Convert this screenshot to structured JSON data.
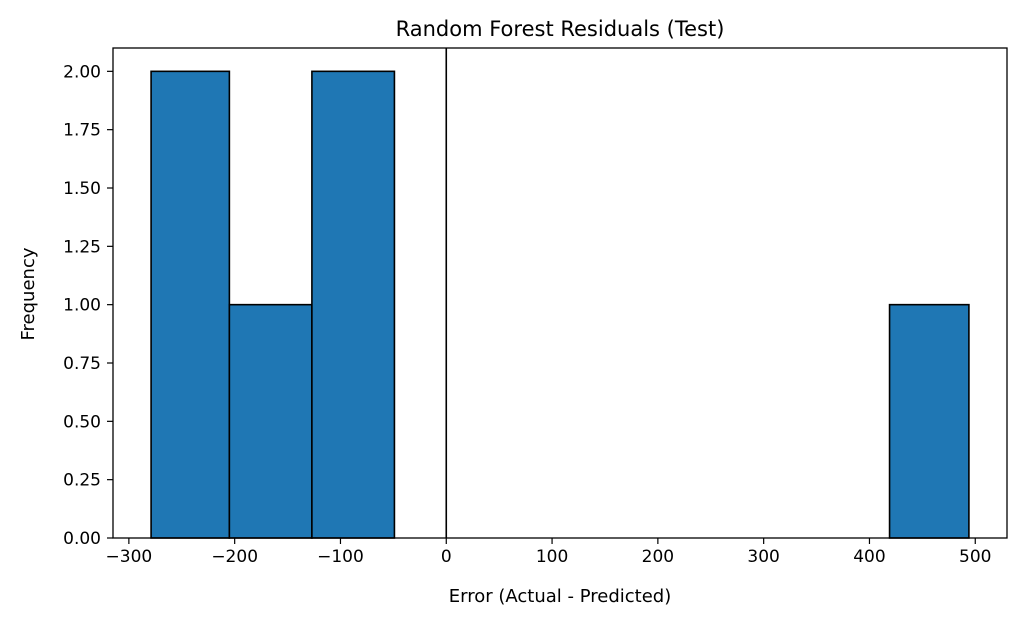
{
  "chart_data": {
    "type": "histogram",
    "title": "Random Forest Residuals (Test)",
    "xlabel": "Error (Actual - Predicted)",
    "ylabel": "Frequency",
    "xlim": [
      -315,
      530
    ],
    "ylim": [
      0,
      2.1
    ],
    "xticks": [
      -300,
      -200,
      -100,
      0,
      100,
      200,
      300,
      400,
      500
    ],
    "xtick_labels": [
      "−300",
      "−200",
      "−100",
      "0",
      "100",
      "200",
      "300",
      "400",
      "500"
    ],
    "yticks": [
      0,
      0.25,
      0.5,
      0.75,
      1.0,
      1.25,
      1.5,
      1.75,
      2.0
    ],
    "ytick_labels": [
      "0.00",
      "0.25",
      "0.50",
      "0.75",
      "1.00",
      "1.25",
      "1.50",
      "1.75",
      "2.00"
    ],
    "bins": [
      {
        "x0": -279.0,
        "x1": -205.0,
        "count": 2
      },
      {
        "x0": -205.0,
        "x1": -127.0,
        "count": 1
      },
      {
        "x0": -127.0,
        "x1": -49.0,
        "count": 2
      },
      {
        "x0": -49.0,
        "x1": 29.0,
        "count": 0
      },
      {
        "x0": 29.0,
        "x1": 107.0,
        "count": 0
      },
      {
        "x0": 107.0,
        "x1": 185.0,
        "count": 0
      },
      {
        "x0": 185.0,
        "x1": 263.0,
        "count": 0
      },
      {
        "x0": 263.0,
        "x1": 341.0,
        "count": 0
      },
      {
        "x0": 341.0,
        "x1": 419.0,
        "count": 0
      },
      {
        "x0": 419.0,
        "x1": 494.0,
        "count": 1
      }
    ],
    "vline_x": 0,
    "bar_color": "#1f77b4",
    "edge_color": "#000000",
    "grid": false
  }
}
